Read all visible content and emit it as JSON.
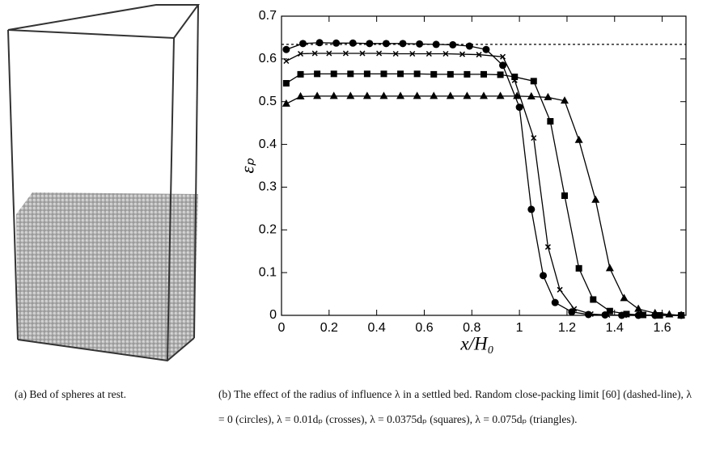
{
  "chart_data": {
    "type": "line",
    "xlabel": "x/H₀",
    "ylabel": "εₚ",
    "xlim": [
      0,
      1.7
    ],
    "ylim": [
      0,
      0.7
    ],
    "xticks": [
      0,
      0.2,
      0.4,
      0.6,
      0.8,
      1,
      1.2,
      1.4,
      1.6
    ],
    "yticks": [
      0,
      0.1,
      0.2,
      0.3,
      0.4,
      0.5,
      0.6,
      0.7
    ],
    "color": "#000000",
    "hline": 0.634,
    "series": [
      {
        "marker": "circle",
        "x": [
          0.02,
          0.09,
          0.16,
          0.23,
          0.3,
          0.37,
          0.44,
          0.51,
          0.58,
          0.65,
          0.72,
          0.79,
          0.86,
          0.93,
          1.0,
          1.05,
          1.1,
          1.15,
          1.22,
          1.29,
          1.36,
          1.43,
          1.5,
          1.57,
          1.68
        ],
        "values": [
          0.622,
          0.636,
          0.638,
          0.637,
          0.637,
          0.636,
          0.636,
          0.636,
          0.635,
          0.634,
          0.633,
          0.63,
          0.622,
          0.585,
          0.487,
          0.248,
          0.093,
          0.03,
          0.008,
          0.002,
          0.001,
          0,
          0,
          0,
          0
        ]
      },
      {
        "marker": "cross",
        "x": [
          0.02,
          0.08,
          0.14,
          0.2,
          0.27,
          0.34,
          0.41,
          0.48,
          0.55,
          0.62,
          0.69,
          0.76,
          0.83,
          0.93,
          0.98,
          1.06,
          1.12,
          1.17,
          1.23,
          1.3,
          1.37,
          1.44,
          1.51,
          1.58,
          1.68
        ],
        "values": [
          0.595,
          0.612,
          0.613,
          0.613,
          0.613,
          0.613,
          0.613,
          0.612,
          0.612,
          0.612,
          0.612,
          0.611,
          0.61,
          0.605,
          0.55,
          0.415,
          0.16,
          0.06,
          0.015,
          0.003,
          0.001,
          0,
          0,
          0,
          0
        ]
      },
      {
        "marker": "square",
        "x": [
          0.02,
          0.08,
          0.15,
          0.22,
          0.29,
          0.36,
          0.43,
          0.5,
          0.57,
          0.64,
          0.71,
          0.78,
          0.85,
          0.92,
          0.98,
          1.06,
          1.13,
          1.19,
          1.25,
          1.31,
          1.38,
          1.45,
          1.52,
          1.59,
          1.68
        ],
        "values": [
          0.543,
          0.564,
          0.565,
          0.565,
          0.565,
          0.565,
          0.565,
          0.565,
          0.565,
          0.564,
          0.564,
          0.564,
          0.564,
          0.563,
          0.558,
          0.548,
          0.454,
          0.28,
          0.11,
          0.037,
          0.01,
          0.003,
          0.001,
          0,
          0
        ]
      },
      {
        "marker": "triangle",
        "x": [
          0.02,
          0.08,
          0.15,
          0.22,
          0.29,
          0.36,
          0.43,
          0.5,
          0.57,
          0.64,
          0.71,
          0.78,
          0.85,
          0.92,
          0.99,
          1.05,
          1.12,
          1.19,
          1.25,
          1.32,
          1.38,
          1.44,
          1.5,
          1.57,
          1.63,
          1.68
        ],
        "values": [
          0.495,
          0.512,
          0.513,
          0.513,
          0.513,
          0.513,
          0.513,
          0.513,
          0.513,
          0.513,
          0.513,
          0.513,
          0.513,
          0.513,
          0.513,
          0.512,
          0.51,
          0.502,
          0.41,
          0.27,
          0.11,
          0.04,
          0.015,
          0.005,
          0.002,
          0
        ]
      }
    ]
  },
  "captions": [
    "(a)  Bed of spheres at rest.",
    "(b)  The effect of the radius of influence λ in a settled bed.  Random close-packing limit [60] (dashed-line), λ = 0 (circles), λ = 0.01dₚ (crosses), λ = 0.0375dₚ (squares), λ = 0.075dₚ (triangles)."
  ]
}
